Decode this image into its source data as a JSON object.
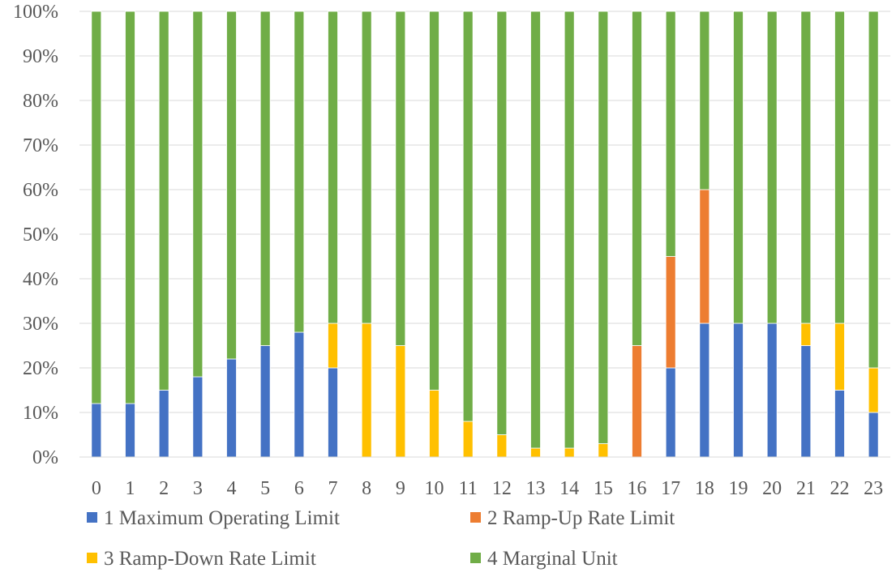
{
  "chart_data": {
    "type": "stacked-bar-100",
    "title": "",
    "xlabel": "",
    "ylabel": "",
    "ylim": [
      0,
      100
    ],
    "y_ticks": [
      "0%",
      "10%",
      "20%",
      "30%",
      "40%",
      "50%",
      "60%",
      "70%",
      "80%",
      "90%",
      "100%"
    ],
    "categories": [
      "0",
      "1",
      "2",
      "3",
      "4",
      "5",
      "6",
      "7",
      "8",
      "9",
      "10",
      "11",
      "12",
      "13",
      "14",
      "15",
      "16",
      "17",
      "18",
      "19",
      "20",
      "21",
      "22",
      "23"
    ],
    "series": [
      {
        "name": "1 Maximum Operating Limit",
        "color": "#4472c4",
        "values": [
          12,
          12,
          15,
          18,
          22,
          25,
          28,
          20,
          0,
          0,
          0,
          0,
          0,
          0,
          0,
          0,
          0,
          20,
          30,
          30,
          30,
          25,
          15,
          10
        ]
      },
      {
        "name": "2 Ramp-Up Rate Limit",
        "color": "#ed7d31",
        "values": [
          0,
          0,
          0,
          0,
          0,
          0,
          0,
          0,
          0,
          0,
          0,
          0,
          0,
          0,
          0,
          0,
          25,
          25,
          30,
          0,
          0,
          0,
          0,
          0
        ]
      },
      {
        "name": "3 Ramp-Down Rate Limit",
        "color": "#ffc000",
        "values": [
          0,
          0,
          0,
          0,
          0,
          0,
          0,
          10,
          30,
          25,
          15,
          8,
          5,
          2,
          2,
          3,
          0,
          0,
          0,
          0,
          0,
          5,
          15,
          10
        ]
      },
      {
        "name": "4 Marginal Unit",
        "color": "#70ad47",
        "values": [
          88,
          88,
          85,
          82,
          78,
          75,
          72,
          70,
          70,
          75,
          85,
          92,
          95,
          98,
          98,
          97,
          75,
          55,
          40,
          70,
          70,
          70,
          70,
          80
        ]
      }
    ],
    "grid": true,
    "legend_position": "bottom"
  }
}
